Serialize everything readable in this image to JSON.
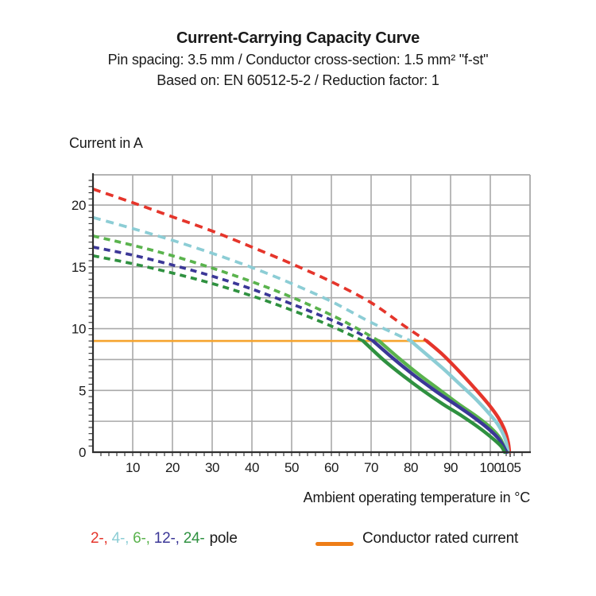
{
  "header": {
    "title": "Current-Carrying Capacity Curve",
    "subtitle1": "Pin spacing: 3.5 mm / Conductor cross-section: 1.5 mm² \"f-st\"",
    "subtitle2": "Based on: EN 60512-5-2 / Reduction factor: 1"
  },
  "chart_data": {
    "type": "line",
    "title": "Current-Carrying Capacity Curve",
    "ylabel": "Current in A",
    "xlabel": "Ambient operating temperature in °C",
    "xlim": [
      0,
      110
    ],
    "ylim": [
      0,
      22.45
    ],
    "x_ticks": [
      10,
      20,
      30,
      40,
      50,
      60,
      70,
      80,
      90,
      100,
      105
    ],
    "y_ticks": [
      0,
      5,
      10,
      15,
      20
    ],
    "x_minor_step": 2,
    "y_minor_step": 0.5,
    "grid": {
      "x_step": 10,
      "y_step": 2.5,
      "color": "#a9a9a9",
      "on": true
    },
    "legend_position": "bottom",
    "rated_current": {
      "label": "Conductor rated current",
      "value": 9,
      "x_start": 0,
      "x_end": 84,
      "color": "#f6a42e"
    },
    "series": [
      {
        "name": "2-pole",
        "color": "#e5352b",
        "dash": [
          10,
          7
        ],
        "dashed": [
          [
            0,
            21.3
          ],
          [
            10,
            20.2
          ],
          [
            20,
            19.05
          ],
          [
            30,
            17.9
          ],
          [
            40,
            16.6
          ],
          [
            50,
            15.25
          ],
          [
            60,
            13.8
          ],
          [
            70,
            12.1
          ],
          [
            78,
            10.3
          ],
          [
            84,
            9.0
          ]
        ],
        "solid": [
          [
            84,
            9
          ],
          [
            88,
            7.9
          ],
          [
            92,
            6.6
          ],
          [
            96,
            5.2
          ],
          [
            99.5,
            3.9
          ],
          [
            102,
            2.8
          ],
          [
            103.6,
            1.8
          ],
          [
            104.5,
            0.8
          ],
          [
            104.8,
            0
          ]
        ]
      },
      {
        "name": "4-pole",
        "color": "#8ccdd5",
        "dash": [
          10,
          7
        ],
        "dashed": [
          [
            0,
            19.0
          ],
          [
            10,
            18.1
          ],
          [
            20,
            17.15
          ],
          [
            30,
            16.1
          ],
          [
            40,
            14.95
          ],
          [
            50,
            13.65
          ],
          [
            60,
            12.2
          ],
          [
            70,
            10.5
          ],
          [
            80,
            9.0
          ]
        ],
        "solid": [
          [
            80,
            9
          ],
          [
            84,
            7.9
          ],
          [
            88,
            6.8
          ],
          [
            92,
            5.6
          ],
          [
            96,
            4.4
          ],
          [
            99.5,
            3.2
          ],
          [
            102,
            2.2
          ],
          [
            103.7,
            1.1
          ],
          [
            104.5,
            0
          ]
        ]
      },
      {
        "name": "6-pole",
        "color": "#5ab34d",
        "dash": [
          8,
          6
        ],
        "dashed": [
          [
            0,
            17.5
          ],
          [
            10,
            16.75
          ],
          [
            20,
            15.9
          ],
          [
            30,
            14.9
          ],
          [
            40,
            13.8
          ],
          [
            50,
            12.55
          ],
          [
            60,
            11.1
          ],
          [
            66,
            10.1
          ],
          [
            72,
            9.0
          ]
        ],
        "solid": [
          [
            72,
            9
          ],
          [
            77,
            7.6
          ],
          [
            82,
            6.3
          ],
          [
            87,
            5.1
          ],
          [
            92,
            3.9
          ],
          [
            96.5,
            2.9
          ],
          [
            100,
            2.0
          ],
          [
            102.5,
            1.1
          ],
          [
            103.9,
            0
          ]
        ]
      },
      {
        "name": "12-pole",
        "color": "#3b3797",
        "dash": [
          8,
          6
        ],
        "dashed": [
          [
            0,
            16.6
          ],
          [
            10,
            15.95
          ],
          [
            20,
            15.15
          ],
          [
            30,
            14.25
          ],
          [
            40,
            13.2
          ],
          [
            50,
            12.0
          ],
          [
            60,
            10.7
          ],
          [
            65,
            9.95
          ],
          [
            70.5,
            9.0
          ]
        ],
        "solid": [
          [
            70.5,
            9
          ],
          [
            75.5,
            7.6
          ],
          [
            80.5,
            6.3
          ],
          [
            86,
            5.0
          ],
          [
            91,
            3.9
          ],
          [
            95.5,
            2.9
          ],
          [
            99.5,
            1.9
          ],
          [
            102.3,
            1.0
          ],
          [
            104.1,
            0
          ]
        ]
      },
      {
        "name": "24-pole",
        "color": "#2f9140",
        "dash": [
          8,
          6
        ],
        "dashed": [
          [
            0,
            15.9
          ],
          [
            10,
            15.25
          ],
          [
            20,
            14.5
          ],
          [
            30,
            13.65
          ],
          [
            40,
            12.65
          ],
          [
            50,
            11.5
          ],
          [
            60,
            10.2
          ],
          [
            68,
            9.0
          ]
        ],
        "solid": [
          [
            68,
            9
          ],
          [
            73,
            7.5
          ],
          [
            78,
            6.2
          ],
          [
            83,
            5.0
          ],
          [
            88,
            3.9
          ],
          [
            93,
            2.9
          ],
          [
            97.5,
            1.9
          ],
          [
            101,
            1.0
          ],
          [
            102.8,
            0.45
          ],
          [
            103.6,
            0
          ]
        ]
      }
    ]
  },
  "legend": {
    "poles": [
      {
        "label": "2-,",
        "color": "#e5352b"
      },
      {
        "label": "4-,",
        "color": "#8ccdd5"
      },
      {
        "label": "6-,",
        "color": "#5ab34d"
      },
      {
        "label": "12-,",
        "color": "#3b3797"
      },
      {
        "label": "24-",
        "color": "#2f9140"
      }
    ],
    "poles_suffix": "pole",
    "rated": {
      "label": "Conductor rated current",
      "swatch_color": "#ee7d16"
    }
  }
}
